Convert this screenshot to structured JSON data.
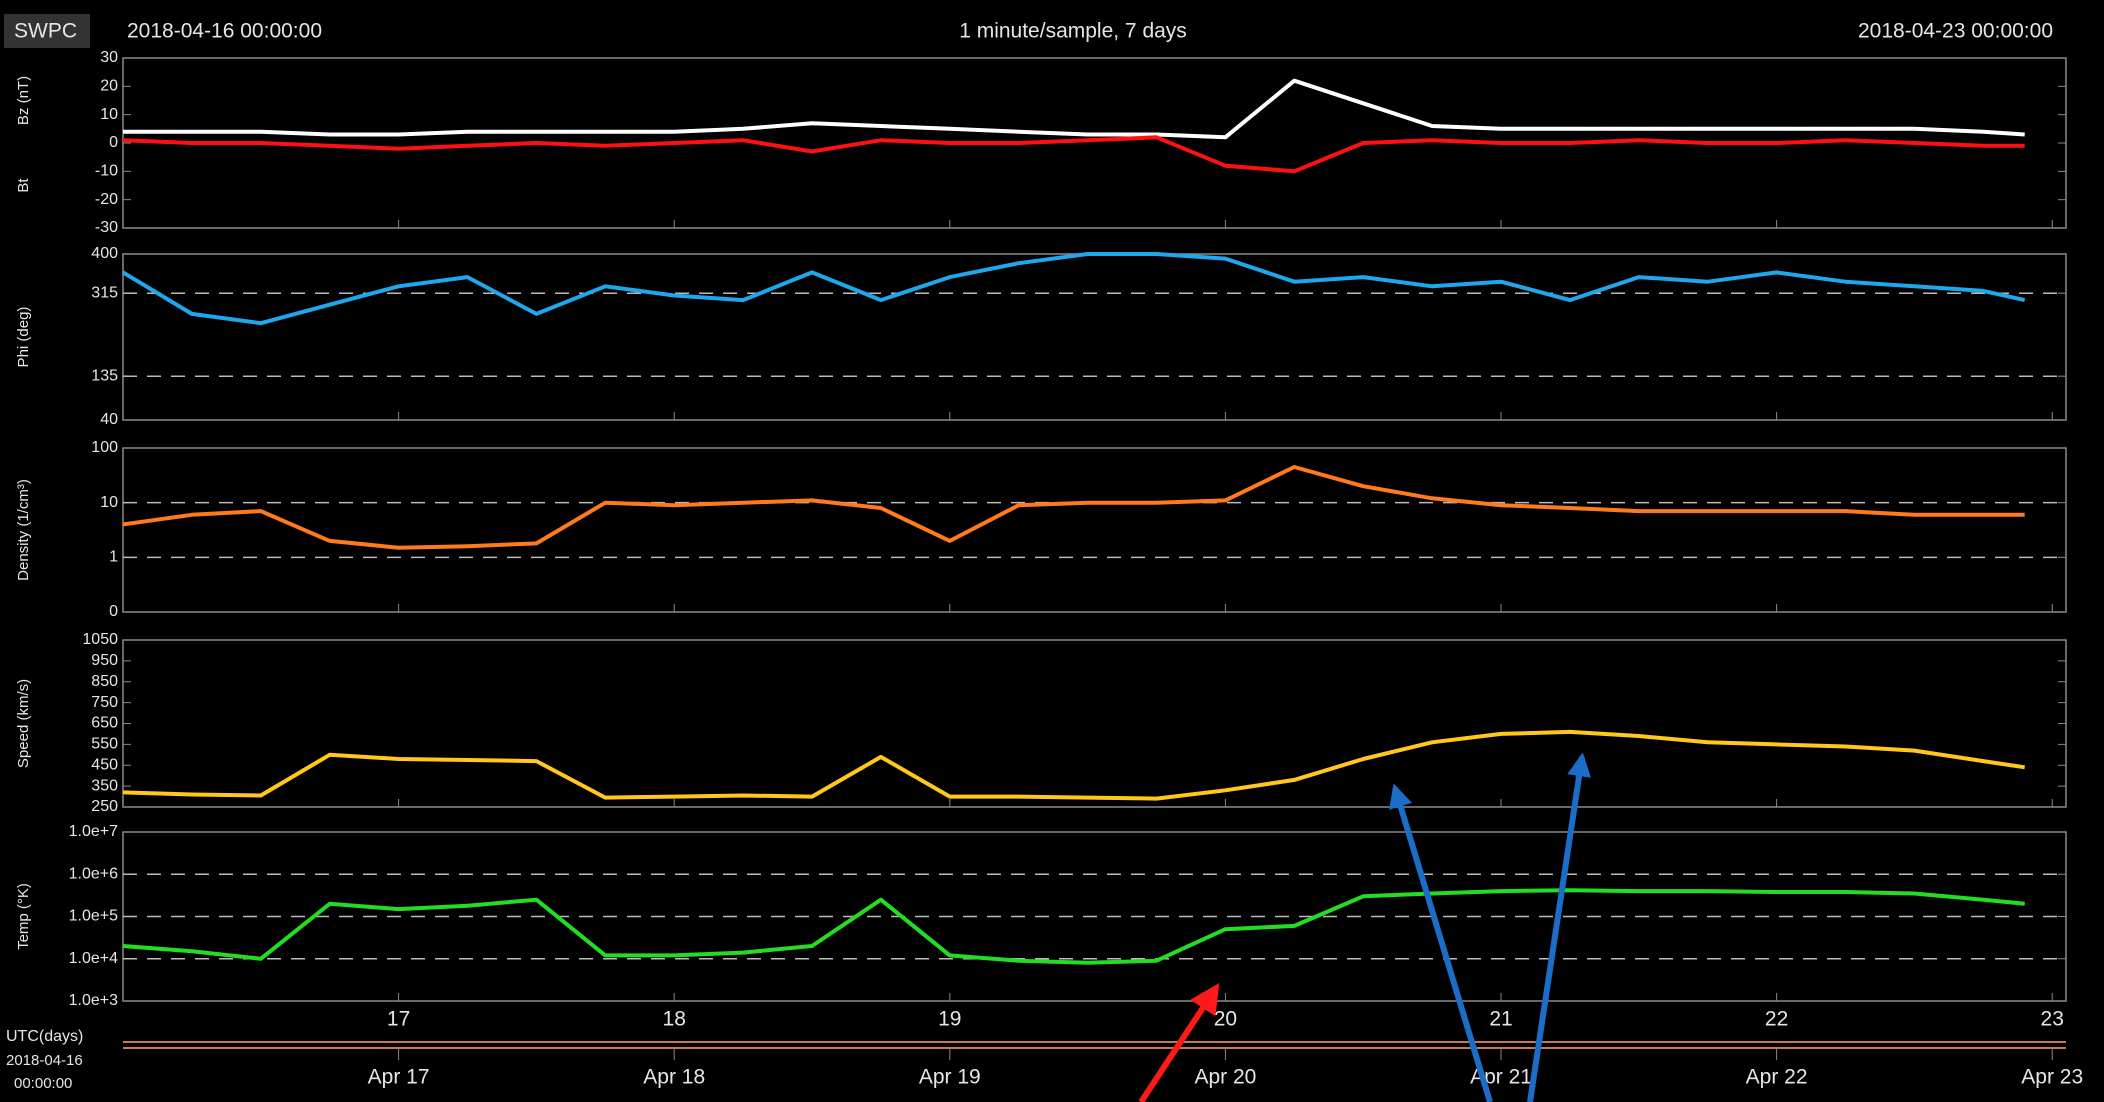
{
  "header": {
    "brand": "SWPC",
    "start": "2018-04-16 00:00:00",
    "center": "1 minute/sample, 7 days",
    "end": "2018-04-23 00:00:00"
  },
  "x_axis": {
    "xlim": [
      16,
      23.05
    ],
    "xticks": [
      17,
      18,
      19,
      20,
      21,
      22,
      23
    ],
    "date_labels": [
      "Apr 17",
      "Apr 18",
      "Apr 19",
      "Apr 20",
      "Apr 21",
      "Apr 22",
      "Apr 23"
    ],
    "unit_label": "UTC(days)",
    "start_date": "2018-04-16",
    "start_time": "00:00:00"
  },
  "chart_data": [
    {
      "type": "line",
      "ylim": [
        -30,
        30
      ],
      "yticks": [
        -30,
        -20,
        -10,
        0,
        10,
        20,
        30
      ],
      "log": false,
      "grid": false,
      "x": [
        16,
        16.25,
        16.5,
        16.75,
        17,
        17.25,
        17.5,
        17.75,
        18,
        18.25,
        18.5,
        18.75,
        19,
        19.25,
        19.5,
        19.75,
        20,
        20.25,
        20.5,
        20.75,
        21,
        21.25,
        21.5,
        21.75,
        22,
        22.25,
        22.5,
        22.75,
        22.9
      ],
      "series": [
        {
          "name": "Bt",
          "color": "#ffffff",
          "values": [
            4,
            4,
            4,
            3,
            3,
            4,
            4,
            4,
            4,
            5,
            7,
            6,
            5,
            4,
            3,
            3,
            2,
            22,
            14,
            6,
            5,
            5,
            5,
            5,
            5,
            5,
            5,
            4,
            3
          ]
        },
        {
          "name": "Bz (nT)",
          "color": "#ff1010",
          "values": [
            1,
            0,
            0,
            -1,
            -2,
            -1,
            0,
            -1,
            0,
            1,
            -3,
            1,
            0,
            0,
            1,
            2,
            -8,
            -10,
            0,
            1,
            0,
            0,
            1,
            0,
            0,
            1,
            0,
            -1,
            -1
          ]
        }
      ]
    },
    {
      "type": "line",
      "ylim": [
        40,
        400
      ],
      "yticks": [
        40,
        135,
        315,
        400
      ],
      "log": false,
      "grid": true,
      "x": [
        16,
        16.25,
        16.5,
        16.75,
        17,
        17.25,
        17.5,
        17.75,
        18,
        18.25,
        18.5,
        18.75,
        19,
        19.25,
        19.5,
        19.75,
        20,
        20.25,
        20.5,
        20.75,
        21,
        21.25,
        21.5,
        21.75,
        22,
        22.25,
        22.5,
        22.75,
        22.9
      ],
      "series": [
        {
          "name": "Phi (deg)",
          "color": "#1ea7ea",
          "values": [
            360,
            270,
            250,
            290,
            330,
            350,
            270,
            330,
            310,
            300,
            360,
            300,
            350,
            380,
            400,
            400,
            390,
            340,
            350,
            330,
            340,
            300,
            350,
            340,
            360,
            340,
            330,
            320,
            300
          ]
        }
      ]
    },
    {
      "type": "line",
      "ylim": [
        0.1,
        100
      ],
      "yticks": [
        {
          "value": 0.1,
          "label": "0"
        },
        1,
        10,
        100
      ],
      "log": true,
      "grid": true,
      "x": [
        16,
        16.25,
        16.5,
        16.75,
        17,
        17.25,
        17.5,
        17.75,
        18,
        18.25,
        18.5,
        18.75,
        19,
        19.25,
        19.5,
        19.75,
        20,
        20.25,
        20.5,
        20.75,
        21,
        21.25,
        21.5,
        21.75,
        22,
        22.25,
        22.5,
        22.75,
        22.9
      ],
      "series": [
        {
          "name": "Density (1/cm³)",
          "color": "#ff7a1a",
          "values": [
            4,
            6,
            7,
            2,
            1.5,
            1.6,
            1.8,
            10,
            9,
            10,
            11,
            8,
            2,
            9,
            10,
            10,
            11,
            45,
            20,
            12,
            9,
            8,
            7,
            7,
            7,
            7,
            6,
            6,
            6
          ]
        }
      ]
    },
    {
      "type": "line",
      "ylim": [
        250,
        1050
      ],
      "yticks": [
        250,
        350,
        450,
        550,
        650,
        750,
        850,
        950,
        1050
      ],
      "log": false,
      "grid": false,
      "x": [
        16,
        16.25,
        16.5,
        16.75,
        17,
        17.25,
        17.5,
        17.75,
        18,
        18.25,
        18.5,
        18.75,
        19,
        19.25,
        19.5,
        19.75,
        20,
        20.25,
        20.5,
        20.75,
        21,
        21.25,
        21.5,
        21.75,
        22,
        22.25,
        22.5,
        22.75,
        22.9
      ],
      "series": [
        {
          "name": "Speed (km/s)",
          "color": "#ffc81a",
          "values": [
            320,
            310,
            305,
            500,
            480,
            475,
            470,
            295,
            300,
            305,
            300,
            490,
            300,
            300,
            295,
            290,
            330,
            380,
            480,
            560,
            600,
            610,
            590,
            560,
            550,
            540,
            520,
            470,
            440
          ]
        }
      ]
    },
    {
      "type": "line",
      "ylim": [
        1000,
        10000000
      ],
      "yticks": [
        {
          "value": 1000,
          "label": "1.0e+3"
        },
        {
          "value": 10000,
          "label": "1.0e+4"
        },
        {
          "value": 100000,
          "label": "1.0e+5"
        },
        {
          "value": 1000000,
          "label": "1.0e+6"
        },
        {
          "value": 10000000,
          "label": "1.0e+7"
        }
      ],
      "log": true,
      "grid": true,
      "x": [
        16,
        16.25,
        16.5,
        16.75,
        17,
        17.25,
        17.5,
        17.75,
        18,
        18.25,
        18.5,
        18.75,
        19,
        19.25,
        19.5,
        19.75,
        20,
        20.25,
        20.5,
        20.75,
        21,
        21.25,
        21.5,
        21.75,
        22,
        22.25,
        22.5,
        22.75,
        22.9
      ],
      "series": [
        {
          "name": "Temp (°K)",
          "color": "#22dd22",
          "values": [
            20000,
            15000,
            10000,
            200000,
            150000,
            180000,
            250000,
            12000,
            12000,
            14000,
            20000,
            250000,
            12000,
            9000,
            8000,
            9000,
            50000,
            60000,
            300000,
            350000,
            400000,
            420000,
            400000,
            400000,
            380000,
            380000,
            350000,
            250000,
            200000
          ]
        }
      ]
    }
  ]
}
